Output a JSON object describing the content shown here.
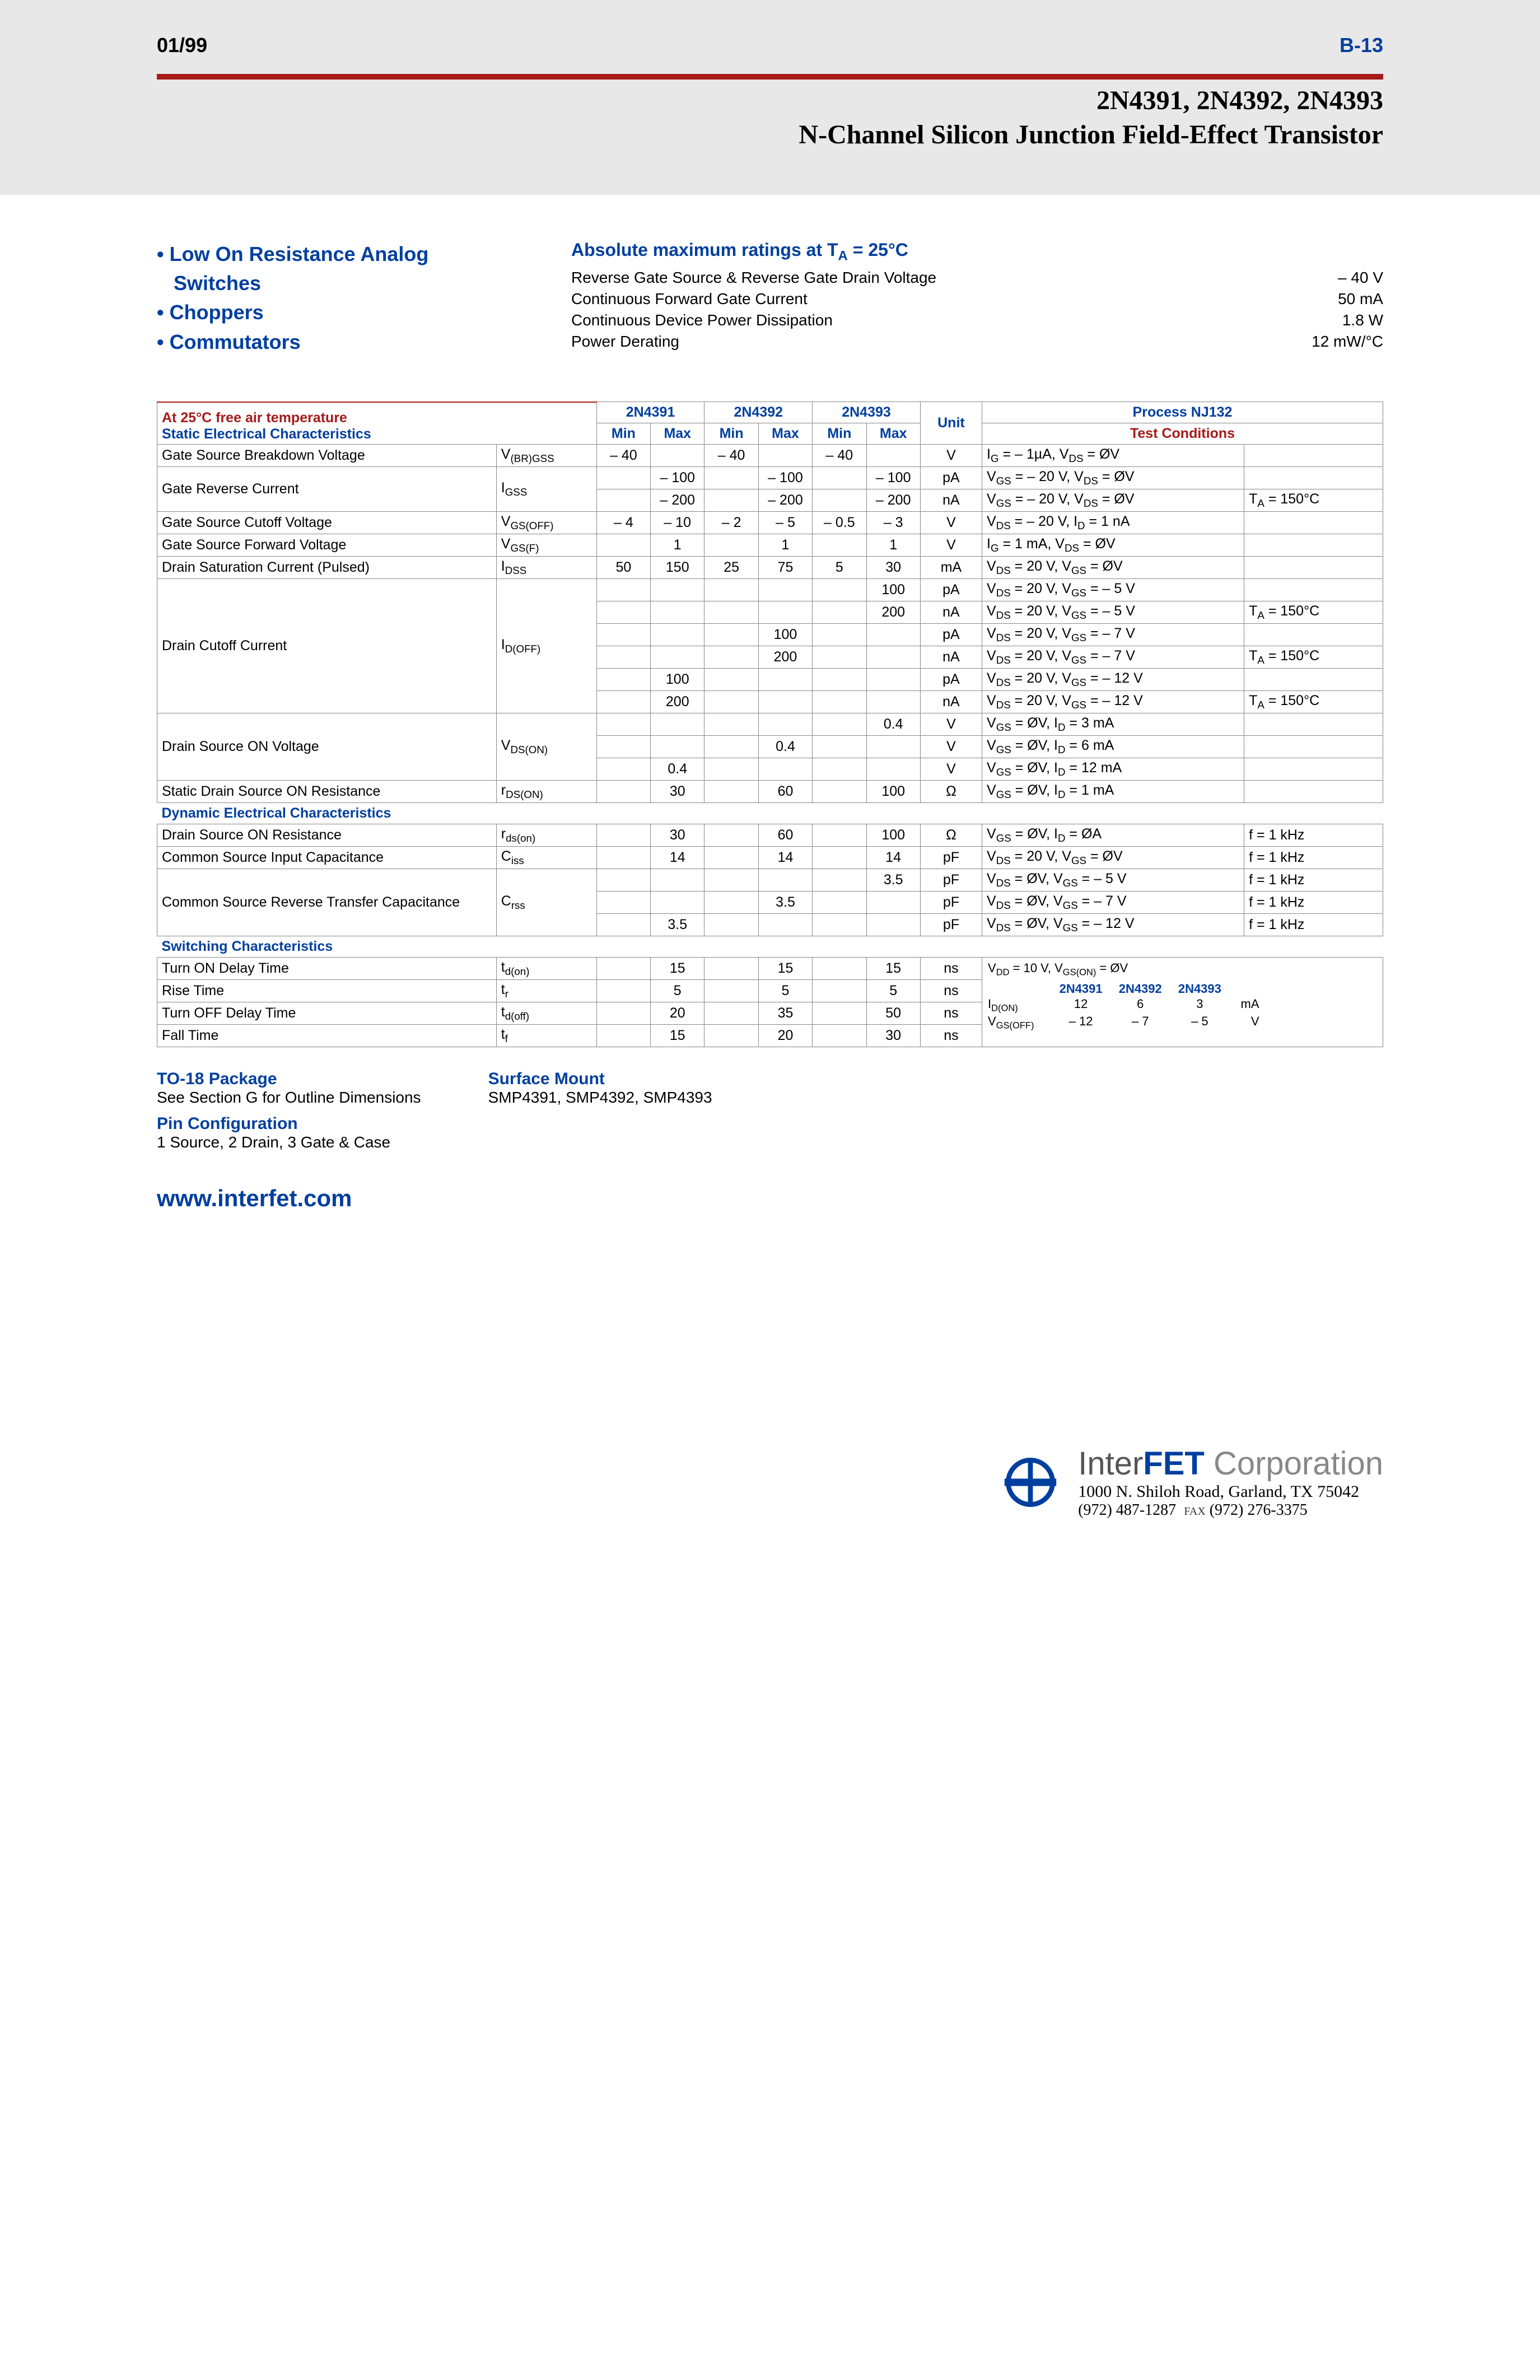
{
  "header": {
    "date": "01/99",
    "page_number": "B-13",
    "part_numbers": "2N4391, 2N4392, 2N4393",
    "subtitle": "N-Channel Silicon Junction Field-Effect Transistor"
  },
  "colors": {
    "accent_blue": "#003f9f",
    "accent_red": "#a61a19",
    "header_bg": "#e8e8e8"
  },
  "features": [
    "Low On Resistance Analog Switches",
    "Choppers",
    "Commutators"
  ],
  "ratings": {
    "title": "Absolute maximum ratings at T_A = 25°C",
    "rows": [
      {
        "label": "Reverse Gate Source & Reverse Gate Drain Voltage",
        "value": "– 40 V"
      },
      {
        "label": "Continuous Forward Gate Current",
        "value": "50 mA"
      },
      {
        "label": "Continuous Device Power Dissipation",
        "value": "1.8 W"
      },
      {
        "label": "Power Derating",
        "value": "12 mW/°C"
      }
    ]
  },
  "table_header": {
    "temp_note": "At 25°C free air temperature",
    "sec_label": "Static Electrical Characteristics",
    "dyn_label": "Dynamic Electrical Characteristics",
    "sw_label": "Switching Characteristics",
    "col_2n4391": "2N4391",
    "col_2n4392": "2N4392",
    "col_2n4393": "2N4393",
    "col_process": "Process NJ132",
    "col_min": "Min",
    "col_max": "Max",
    "col_unit": "Unit",
    "col_tc": "Test Conditions"
  },
  "static_rows": [
    {
      "name": "Gate Source Breakdown Voltage",
      "sym": "V<sub>(BR)GSS</sub>",
      "r": [
        "– 40",
        "",
        "– 40",
        "",
        "– 40",
        "",
        "V"
      ],
      "tc": "I<sub>G</sub> = – 1µA, V<sub>DS</sub> = ØV",
      "tc2": ""
    },
    {
      "name": "Gate Reverse Current",
      "sym": "I<sub>GSS</sub>",
      "rowspan": 2,
      "rows": [
        {
          "r": [
            "",
            "– 100",
            "",
            "– 100",
            "",
            "– 100",
            "pA"
          ],
          "tc": "V<sub>GS</sub> = – 20 V, V<sub>DS</sub> = ØV",
          "tc2": ""
        },
        {
          "r": [
            "",
            "– 200",
            "",
            "– 200",
            "",
            "– 200",
            "nA"
          ],
          "tc": "V<sub>GS</sub> = – 20 V, V<sub>DS</sub> = ØV",
          "tc2": "T<sub>A</sub> = 150°C"
        }
      ]
    },
    {
      "name": "Gate Source Cutoff Voltage",
      "sym": "V<sub>GS(OFF)</sub>",
      "r": [
        "– 4",
        "– 10",
        "– 2",
        "– 5",
        "– 0.5",
        "– 3",
        "V"
      ],
      "tc": "V<sub>DS</sub> = – 20 V, I<sub>D</sub> = 1 nA",
      "tc2": ""
    },
    {
      "name": "Gate Source Forward Voltage",
      "sym": "V<sub>GS(F)</sub>",
      "r": [
        "",
        "1",
        "",
        "1",
        "",
        "1",
        "V"
      ],
      "tc": "I<sub>G</sub> = 1 mA, V<sub>DS</sub> = ØV",
      "tc2": ""
    },
    {
      "name": "Drain Saturation Current (Pulsed)",
      "sym": "I<sub>DSS</sub>",
      "r": [
        "50",
        "150",
        "25",
        "75",
        "5",
        "30",
        "mA"
      ],
      "tc": "V<sub>DS</sub> = 20 V, V<sub>GS</sub> = ØV",
      "tc2": ""
    },
    {
      "name": "Drain Cutoff Current",
      "sym": "I<sub>D(OFF)</sub>",
      "rowspan": 6,
      "rows": [
        {
          "r": [
            "",
            "",
            "",
            "",
            "",
            "100",
            "pA"
          ],
          "tc": "V<sub>DS</sub> = 20 V, V<sub>GS</sub> = – 5 V",
          "tc2": ""
        },
        {
          "r": [
            "",
            "",
            "",
            "",
            "",
            "200",
            "nA"
          ],
          "tc": "V<sub>DS</sub> = 20 V, V<sub>GS</sub> = – 5 V",
          "tc2": "T<sub>A</sub> = 150°C"
        },
        {
          "r": [
            "",
            "",
            "",
            "100",
            "",
            "",
            "pA"
          ],
          "tc": "V<sub>DS</sub> = 20 V, V<sub>GS</sub> = – 7 V",
          "tc2": ""
        },
        {
          "r": [
            "",
            "",
            "",
            "200",
            "",
            "",
            "nA"
          ],
          "tc": "V<sub>DS</sub> = 20 V, V<sub>GS</sub> = – 7 V",
          "tc2": "T<sub>A</sub> = 150°C"
        },
        {
          "r": [
            "",
            "100",
            "",
            "",
            "",
            "",
            "pA"
          ],
          "tc": "V<sub>DS</sub> = 20 V, V<sub>GS</sub> = – 12 V",
          "tc2": ""
        },
        {
          "r": [
            "",
            "200",
            "",
            "",
            "",
            "",
            "nA"
          ],
          "tc": "V<sub>DS</sub> = 20 V, V<sub>GS</sub> = – 12 V",
          "tc2": "T<sub>A</sub> = 150°C"
        }
      ]
    },
    {
      "name": "Drain Source ON Voltage",
      "sym": "V<sub>DS(ON)</sub>",
      "rowspan": 3,
      "rows": [
        {
          "r": [
            "",
            "",
            "",
            "",
            "",
            "0.4",
            "V"
          ],
          "tc": "V<sub>GS</sub> = ØV, I<sub>D</sub> = 3 mA",
          "tc2": ""
        },
        {
          "r": [
            "",
            "",
            "",
            "0.4",
            "",
            "",
            "V"
          ],
          "tc": "V<sub>GS</sub> = ØV, I<sub>D</sub> = 6 mA",
          "tc2": ""
        },
        {
          "r": [
            "",
            "0.4",
            "",
            "",
            "",
            "",
            "V"
          ],
          "tc": "V<sub>GS</sub> = ØV, I<sub>D</sub> = 12 mA",
          "tc2": ""
        }
      ]
    },
    {
      "name": "Static Drain Source ON Resistance",
      "sym": "r<sub>DS(ON)</sub>",
      "r": [
        "",
        "30",
        "",
        "60",
        "",
        "100",
        "Ω"
      ],
      "tc": "V<sub>GS</sub> = ØV, I<sub>D</sub> = 1 mA",
      "tc2": ""
    }
  ],
  "dynamic_rows": [
    {
      "name": "Drain Source ON Resistance",
      "sym": "r<sub>ds(on)</sub>",
      "r": [
        "",
        "30",
        "",
        "60",
        "",
        "100",
        "Ω"
      ],
      "tc": "V<sub>GS</sub> = ØV, I<sub>D</sub> = ØA",
      "tc2": "f = 1 kHz"
    },
    {
      "name": "Common Source Input Capacitance",
      "sym": "C<sub>iss</sub>",
      "r": [
        "",
        "14",
        "",
        "14",
        "",
        "14",
        "pF"
      ],
      "tc": "V<sub>DS</sub> = 20 V, V<sub>GS</sub> = ØV",
      "tc2": "f = 1 kHz"
    },
    {
      "name": "Common Source Reverse Transfer Capacitance",
      "sym": "C<sub>rss</sub>",
      "rowspan": 3,
      "rows": [
        {
          "r": [
            "",
            "",
            "",
            "",
            "",
            "3.5",
            "pF"
          ],
          "tc": "V<sub>DS</sub> = ØV, V<sub>GS</sub> = – 5 V",
          "tc2": "f = 1 kHz"
        },
        {
          "r": [
            "",
            "",
            "",
            "3.5",
            "",
            "",
            "pF"
          ],
          "tc": "V<sub>DS</sub> = ØV, V<sub>GS</sub> = – 7 V",
          "tc2": "f = 1 kHz"
        },
        {
          "r": [
            "",
            "3.5",
            "",
            "",
            "",
            "",
            "pF"
          ],
          "tc": "V<sub>DS</sub> = ØV, V<sub>GS</sub> = – 12 V",
          "tc2": "f = 1 kHz"
        }
      ]
    }
  ],
  "switching_rows": [
    {
      "name": "Turn ON Delay Time",
      "sym": "t<sub>d(on)</sub>",
      "r": [
        "",
        "15",
        "",
        "15",
        "",
        "15",
        "ns"
      ]
    },
    {
      "name": "Rise Time",
      "sym": "t<sub>r</sub>",
      "r": [
        "",
        "5",
        "",
        "5",
        "",
        "5",
        "ns"
      ]
    },
    {
      "name": "Turn OFF Delay Time",
      "sym": "t<sub>d(off)</sub>",
      "r": [
        "",
        "20",
        "",
        "35",
        "",
        "50",
        "ns"
      ]
    },
    {
      "name": "Fall Time",
      "sym": "t<sub>f</sub>",
      "r": [
        "",
        "15",
        "",
        "20",
        "",
        "30",
        "ns"
      ]
    }
  ],
  "switching_tc": {
    "line1": "V<sub>DD</sub> = 10 V, V<sub>GS(ON)</sub> = ØV",
    "headers": [
      "2N4391",
      "2N4392",
      "2N4393"
    ],
    "idon_label": "I<sub>D(ON)</sub>",
    "idon": [
      "12",
      "6",
      "3"
    ],
    "idon_u": "mA",
    "vgs_label": "V<sub>GS(OFF)</sub>",
    "vgs": [
      "– 12",
      "– 7",
      "– 5"
    ],
    "vgs_u": "V"
  },
  "package": {
    "to18_title": "TO-18 Package",
    "to18_text": "See Section G for Outline Dimensions",
    "pin_title": "Pin Configuration",
    "pin_text": "1 Source, 2 Drain, 3 Gate & Case",
    "sm_title": "Surface Mount",
    "sm_text": "SMP4391, SMP4392, SMP4393"
  },
  "website": "www.interfet.com",
  "company": {
    "name_html": "Inter<b>FET</b> Corporation",
    "address": "1000 N. Shiloh Road, Garland, TX 75042",
    "phone": "(972) 487-1287",
    "fax_label": "FAX",
    "fax": "(972) 276-3375"
  }
}
